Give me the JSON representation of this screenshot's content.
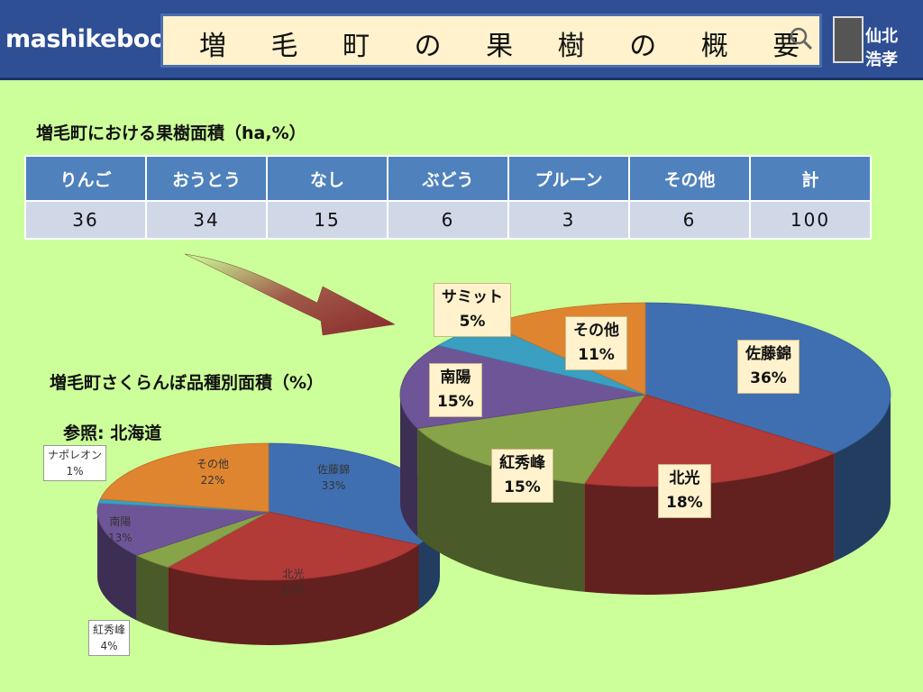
{
  "header": {
    "brand": "mashikebook",
    "title": "増 毛 町 の 果 樹 の 概 要",
    "logo_text": "仙北 浩孝"
  },
  "table": {
    "title": "増毛町における果樹面積（ha,%）",
    "headers": [
      "りんご",
      "おうとう",
      "なし",
      "ぶどう",
      "プルーン",
      "その他",
      "計"
    ],
    "values": [
      "36",
      "34",
      "15",
      "6",
      "3",
      "6",
      "100"
    ]
  },
  "small_pie": {
    "title": "増毛町さくらんぼ品種別面積（%）",
    "ref": "参照:  北海道"
  },
  "colors": {
    "blue": "#3f6fb1",
    "red": "#b23a37",
    "green": "#87a448",
    "purple": "#6e5598",
    "teal": "#3a9fc1",
    "orange": "#df8530"
  },
  "chart_data": [
    {
      "type": "pie",
      "title": "増毛町さくらんぼ品種別面積（%）",
      "slices": [
        {
          "label": "佐藤錦",
          "value": 33,
          "color": "#3f6fb1"
        },
        {
          "label": "北光",
          "value": 27,
          "color": "#b23a37"
        },
        {
          "label": "紅秀峰",
          "value": 4,
          "color": "#87a448"
        },
        {
          "label": "南陽",
          "value": 13,
          "color": "#6e5598"
        },
        {
          "label": "ナポレオン",
          "value": 1,
          "color": "#3a9fc1"
        },
        {
          "label": "その他",
          "value": 22,
          "color": "#df8530"
        }
      ]
    },
    {
      "type": "pie",
      "title": "",
      "slices": [
        {
          "label": "佐藤錦",
          "value": 36,
          "color": "#3f6fb1"
        },
        {
          "label": "北光",
          "value": 18,
          "color": "#b23a37"
        },
        {
          "label": "紅秀峰",
          "value": 15,
          "color": "#87a448"
        },
        {
          "label": "南陽",
          "value": 15,
          "color": "#6e5598"
        },
        {
          "label": "サミット",
          "value": 5,
          "color": "#3a9fc1"
        },
        {
          "label": "その他",
          "value": 11,
          "color": "#df8530"
        }
      ]
    }
  ]
}
